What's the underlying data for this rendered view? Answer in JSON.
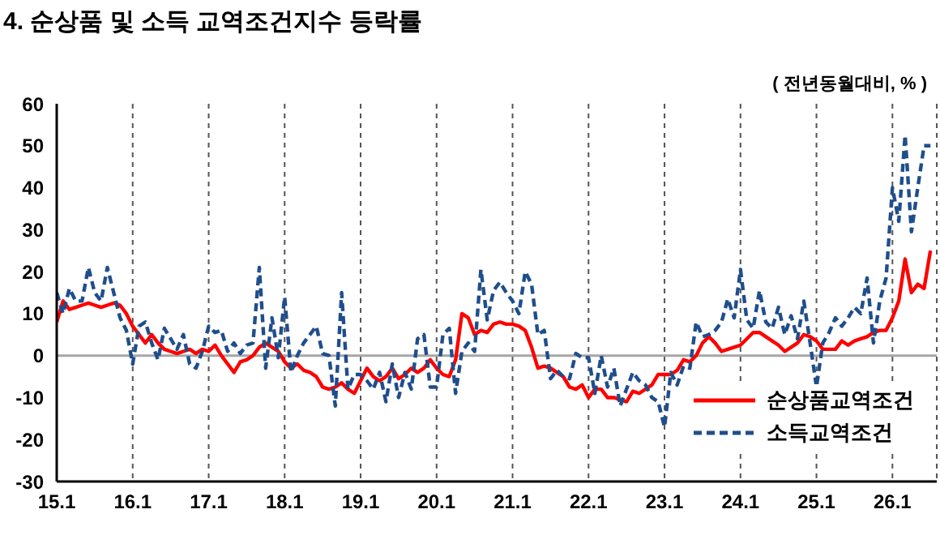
{
  "chart_data": {
    "type": "line",
    "title": "4. 순상품 및 소득 교역조건지수 등락률",
    "annotations": [
      "( 전년동월대비, % )"
    ],
    "categories": [
      "15.1",
      null,
      null,
      null,
      null,
      null,
      null,
      null,
      null,
      null,
      null,
      null,
      "16.1",
      null,
      null,
      null,
      null,
      null,
      null,
      null,
      null,
      null,
      null,
      null,
      "17.1",
      null,
      null,
      null,
      null,
      null,
      null,
      null,
      null,
      null,
      null,
      null,
      "18.1",
      null,
      null,
      null,
      null,
      null,
      null,
      null,
      null,
      null,
      null,
      null,
      "19.1",
      null,
      null,
      null,
      null,
      null,
      null,
      null,
      null,
      null,
      null,
      null,
      "20.1",
      null,
      null,
      null,
      null,
      null,
      null,
      null,
      null,
      null,
      null,
      null,
      "21.1",
      null,
      null,
      null,
      null,
      null,
      null,
      null,
      null,
      null,
      null,
      null,
      "22.1",
      null,
      null,
      null,
      null,
      null,
      null,
      null,
      null,
      null,
      null,
      null,
      "23.1",
      null,
      null,
      null,
      null,
      null,
      null,
      null,
      null,
      null,
      null,
      null,
      "24.1",
      null,
      null,
      null,
      null,
      null,
      null,
      null,
      null,
      null,
      null,
      null,
      "25.1",
      null,
      null,
      null,
      null,
      null,
      null,
      null,
      null,
      null,
      null,
      null,
      "26.1",
      null,
      null,
      null,
      null,
      null,
      null
    ],
    "series": [
      {
        "name": "순상품교역조건",
        "color": "#ff0000",
        "line_style": "solid",
        "values": [
          8,
          13,
          11,
          11.5,
          12,
          12.5,
          12,
          11.5,
          12,
          12.5,
          12,
          10,
          7,
          5,
          3,
          5,
          3,
          1.5,
          1,
          0.5,
          1,
          1.5,
          0.5,
          1.5,
          1,
          2.5,
          0,
          -2,
          -4,
          -1.5,
          -1,
          0,
          2,
          3,
          2,
          1,
          -1.5,
          -3,
          -2,
          -3.5,
          -4,
          -5,
          -7.5,
          -8,
          -7.5,
          -6.5,
          -8,
          -9,
          -6,
          -3,
          -5,
          -6,
          -5,
          -3,
          -5.5,
          -4.5,
          -3,
          -4,
          -3,
          -1,
          -3,
          -4.5,
          -5,
          -1,
          10,
          9,
          5,
          6,
          5.5,
          7.5,
          8,
          7.5,
          7.5,
          7,
          6,
          2,
          -3,
          -2.5,
          -3,
          -4,
          -5,
          -7.5,
          -8,
          -7,
          -10,
          -8,
          -8,
          -10,
          -10,
          -10.5,
          -11,
          -8.5,
          -9,
          -8,
          -7,
          -4.5,
          -4.5,
          -4.5,
          -3.5,
          -1,
          -1.5,
          0,
          3,
          4.5,
          3,
          1,
          1.5,
          2,
          2.5,
          4,
          5.5,
          5.5,
          4.5,
          3.5,
          2.5,
          1,
          2,
          3,
          5,
          4.5,
          3.5,
          1.5,
          1.5,
          1.5,
          3.5,
          2.5,
          3.5,
          4,
          4.5,
          5.5,
          6,
          6,
          9,
          13,
          23,
          15,
          17,
          16,
          25
        ]
      },
      {
        "name": "소득교역조건",
        "color": "#1f4e8c",
        "line_style": "dashed",
        "values": [
          15,
          10,
          16,
          13,
          13,
          21,
          15,
          13,
          21,
          15,
          9,
          6,
          -2,
          7,
          8,
          3,
          -1,
          6.5,
          4,
          1.5,
          5,
          -2,
          -3,
          1,
          7,
          5.5,
          6,
          1,
          3,
          0.5,
          2.5,
          3,
          21,
          -3,
          9,
          -0.5,
          14,
          -4,
          0,
          3,
          5,
          7,
          0.5,
          0,
          -12,
          15,
          -8,
          -4.5,
          -4.5,
          -6,
          -8,
          -4,
          -11,
          -2,
          -10,
          -4,
          -8,
          4,
          5,
          -7.5,
          -7.5,
          5,
          6.5,
          -9,
          1,
          3,
          1,
          20.5,
          8.5,
          15.5,
          17.5,
          15,
          13,
          10,
          20,
          17,
          5,
          6,
          -5.5,
          -3.5,
          -5,
          -5.5,
          0.5,
          -0.5,
          -0.5,
          -9,
          0,
          -7.5,
          -3,
          -12,
          -8,
          -4,
          -6,
          -7,
          -10,
          -11,
          -17,
          -4,
          -7,
          -2.5,
          -3,
          8,
          4.5,
          5,
          6,
          8,
          13.5,
          9,
          20.5,
          8.5,
          6.5,
          15.5,
          8,
          6.5,
          11.5,
          5,
          9.5,
          4,
          13,
          3,
          -7.5,
          3,
          5.5,
          9,
          7,
          9,
          11.5,
          10,
          18.5,
          3,
          13,
          18.5,
          40,
          32,
          52.5,
          29.5,
          40,
          50,
          50
        ]
      }
    ],
    "ylim": [
      -30,
      60
    ],
    "yticks": [
      -30,
      -20,
      -10,
      0,
      10,
      20,
      30,
      40,
      50,
      60
    ],
    "ref_lines": [
      {
        "axis": "y",
        "value": 0,
        "color": "#a6a6a6"
      }
    ],
    "grid": "x",
    "legend": "bottom right",
    "marker": "none"
  }
}
